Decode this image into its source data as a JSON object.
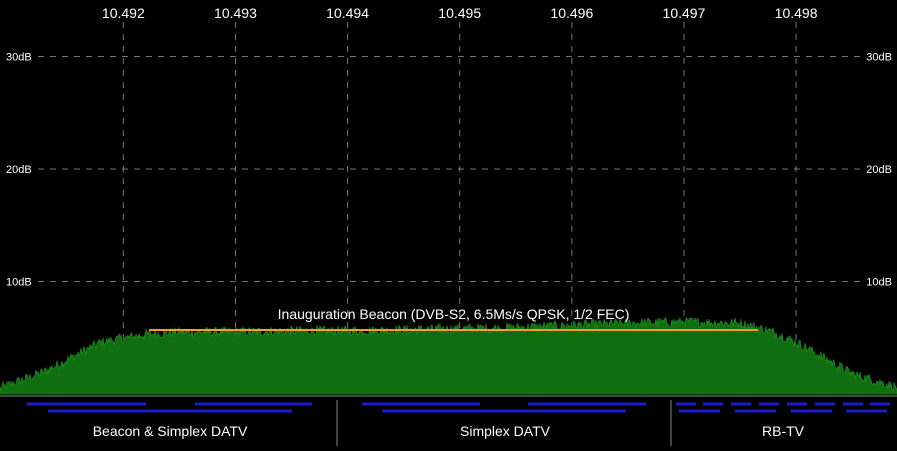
{
  "chart_data": {
    "type": "area",
    "x_ticks": [
      "10.492",
      "10.493",
      "10.494",
      "10.495",
      "10.496",
      "10.497",
      "10.498"
    ],
    "x_tick_values": [
      10.492,
      10.493,
      10.494,
      10.495,
      10.496,
      10.497,
      10.498
    ],
    "y_ticks": [
      {
        "value": 10,
        "label": "10dB"
      },
      {
        "value": 20,
        "label": "20dB"
      },
      {
        "value": 30,
        "label": "30dB"
      }
    ],
    "xlim": [
      10.4909,
      10.4989
    ],
    "ylim": [
      0,
      30
    ],
    "grid": true,
    "series": [
      {
        "color": "#1a7a1a",
        "points": [
          [
            10.4909,
            0.5
          ],
          [
            10.4913,
            2.0
          ],
          [
            10.4918,
            4.6
          ],
          [
            10.4922,
            5.3
          ],
          [
            10.4925,
            5.5
          ],
          [
            10.493,
            5.5
          ],
          [
            10.4935,
            5.6
          ],
          [
            10.494,
            5.6
          ],
          [
            10.4945,
            5.7
          ],
          [
            10.495,
            5.8
          ],
          [
            10.4955,
            5.9
          ],
          [
            10.496,
            6.1
          ],
          [
            10.4965,
            6.3
          ],
          [
            10.497,
            6.4
          ],
          [
            10.4975,
            6.3
          ],
          [
            10.4978,
            5.5
          ],
          [
            10.498,
            4.6
          ],
          [
            10.4985,
            1.8
          ],
          [
            10.4989,
            0.6
          ]
        ]
      }
    ],
    "annotations": [
      {
        "text": "Inauguration Beacon (DVB-S2, 6.5Ms/s QPSK, 1/2 FEC)",
        "x_start": 10.49223,
        "x_end": 10.49766,
        "level": 5.6,
        "color": "#ff9a1f"
      }
    ]
  },
  "bands": [
    {
      "label": "Beacon & Simplex DATV"
    },
    {
      "label": "Simplex DATV"
    },
    {
      "label": "RB-TV"
    }
  ],
  "colors": {
    "background": "#000000",
    "grid": "#9a9a9a",
    "signal_fill": "#0f6e10",
    "signal_noise": "#1d8a1d",
    "beacon_line": "#ff9a1f",
    "channel_marker": "#1c1ccf",
    "divider": "#8a8a8a",
    "text": "#ffffff"
  }
}
